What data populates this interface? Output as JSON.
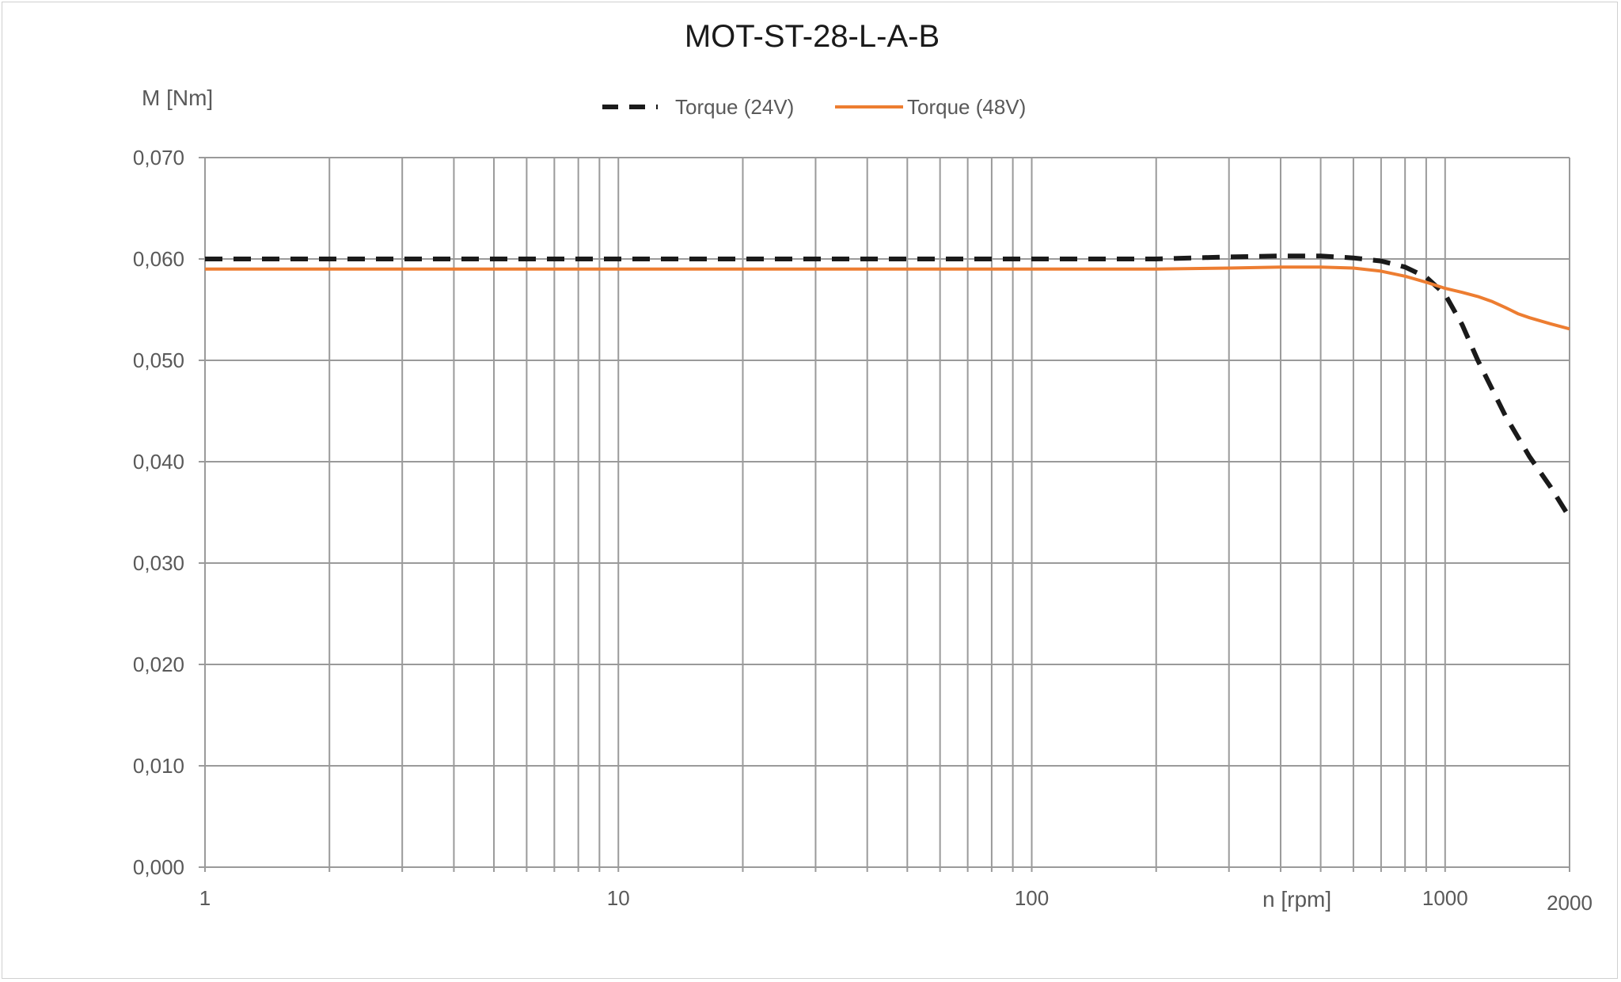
{
  "chart_data": {
    "type": "line",
    "title": "MOT-ST-28-L-A-B",
    "xlabel": "n [rpm]",
    "ylabel": "M [Nm]",
    "x_scale": "log",
    "xlim": [
      1,
      2000
    ],
    "ylim": [
      0,
      0.07
    ],
    "grid": true,
    "legend_position": "top",
    "x_tick_labels": [
      "1",
      "10",
      "100",
      "1000",
      "2000"
    ],
    "y_tick_labels": [
      "0,000",
      "0,010",
      "0,020",
      "0,030",
      "0,040",
      "0,050",
      "0,060",
      "0,070"
    ],
    "series": [
      {
        "name": "Torque (24V)",
        "color": "#1a1a1a",
        "style": "dashed",
        "x": [
          1,
          10,
          100,
          200,
          300,
          400,
          500,
          600,
          700,
          800,
          900,
          1000,
          1100,
          1200,
          1400,
          1600,
          1800,
          2000
        ],
        "y": [
          0.06,
          0.06,
          0.06,
          0.06,
          0.0602,
          0.0603,
          0.0603,
          0.0601,
          0.0598,
          0.0592,
          0.0582,
          0.0565,
          0.0535,
          0.05,
          0.0445,
          0.0405,
          0.0375,
          0.0345
        ]
      },
      {
        "name": "Torque (48V)",
        "color": "#ed7d31",
        "style": "solid",
        "x": [
          1,
          10,
          100,
          200,
          300,
          400,
          500,
          600,
          700,
          800,
          900,
          1000,
          1100,
          1200,
          1300,
          1400,
          1500,
          1600,
          1800,
          2000
        ],
        "y": [
          0.059,
          0.059,
          0.059,
          0.059,
          0.0591,
          0.0592,
          0.0592,
          0.0591,
          0.0588,
          0.0583,
          0.0577,
          0.0571,
          0.0567,
          0.0563,
          0.0558,
          0.0552,
          0.0546,
          0.0542,
          0.0536,
          0.0531
        ]
      }
    ]
  }
}
